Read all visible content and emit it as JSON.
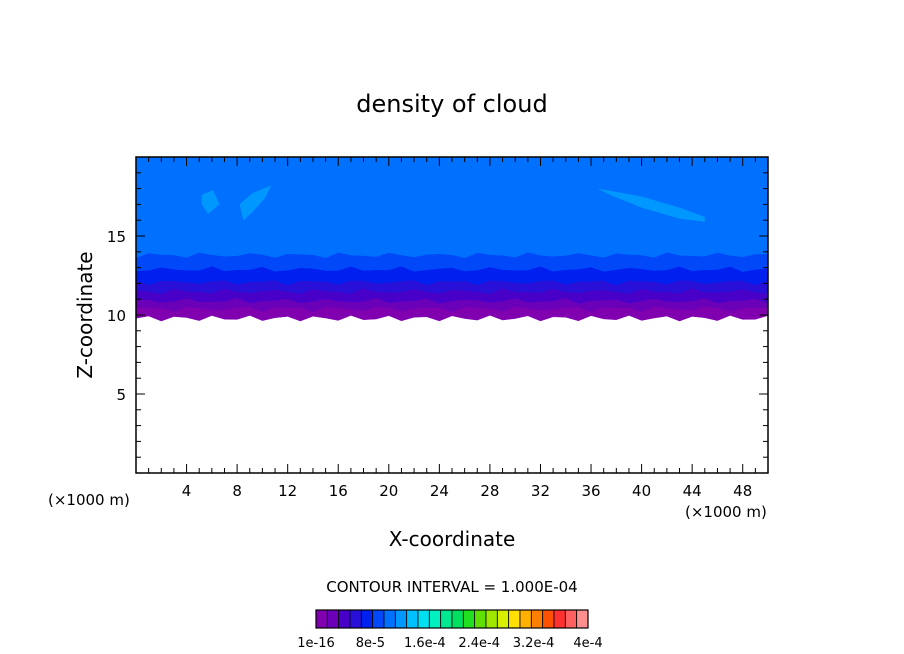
{
  "chart_data": {
    "type": "heatmap",
    "title": "density of cloud",
    "xlabel": "X-coordinate",
    "ylabel": "Z-coordinate",
    "x_unit": "(×1000 m)",
    "z_unit": "(×1000 m)",
    "xlim": [
      0,
      50
    ],
    "ylim": [
      0,
      20
    ],
    "x_ticks": [
      4,
      8,
      12,
      16,
      20,
      24,
      28,
      32,
      36,
      40,
      44,
      48
    ],
    "y_ticks": [
      5,
      10,
      15
    ],
    "contour_interval_text": "CONTOUR INTERVAL = 1.000E-04",
    "colorbar_labels": [
      "1e-16",
      "8e-5",
      "1.6e-4",
      "2.4e-4",
      "3.2e-4",
      "4e-4"
    ],
    "colorbar_colors": [
      "#8000b0",
      "#6a00b8",
      "#4800c8",
      "#2810d8",
      "#0020f0",
      "#0048f8",
      "#0070ff",
      "#0098ff",
      "#00c0ff",
      "#00e0f0",
      "#00f0c0",
      "#00e890",
      "#00e060",
      "#20e020",
      "#60e000",
      "#a0e800",
      "#d8f000",
      "#ffe000",
      "#ffb000",
      "#ff8000",
      "#ff5000",
      "#ff3030",
      "#ff6060",
      "#ff9090"
    ],
    "cloud_layers": [
      {
        "z_bottom": 9.8,
        "z_top": 10.4,
        "color": "#8000b0"
      },
      {
        "z_bottom": 10.4,
        "z_top": 10.9,
        "color": "#6a00b8"
      },
      {
        "z_bottom": 10.9,
        "z_top": 11.5,
        "color": "#4800c8"
      },
      {
        "z_bottom": 11.5,
        "z_top": 12.1,
        "color": "#2810d8"
      },
      {
        "z_bottom": 12.1,
        "z_top": 12.9,
        "color": "#0020f0"
      },
      {
        "z_bottom": 12.9,
        "z_top": 13.8,
        "color": "#0048f8"
      },
      {
        "z_bottom": 13.8,
        "z_top": 20.0,
        "color": "#0070ff"
      }
    ],
    "patches": [
      {
        "color": "#0098ff",
        "points": [
          [
            36.5,
            18.0
          ],
          [
            40,
            17.5
          ],
          [
            43,
            16.8
          ],
          [
            45,
            16.2
          ],
          [
            45,
            15.9
          ],
          [
            43,
            16.1
          ],
          [
            40,
            16.8
          ],
          [
            37.5,
            17.6
          ],
          [
            36.5,
            18.0
          ]
        ]
      },
      {
        "color": "#0098ff",
        "points": [
          [
            8.2,
            17.0
          ],
          [
            9.2,
            17.7
          ],
          [
            10.7,
            18.2
          ],
          [
            10.2,
            17.4
          ],
          [
            9.2,
            16.5
          ],
          [
            8.5,
            16.0
          ],
          [
            8.2,
            17.0
          ]
        ]
      },
      {
        "color": "#0098ff",
        "points": [
          [
            5.2,
            17.6
          ],
          [
            6.1,
            17.9
          ],
          [
            6.6,
            17.0
          ],
          [
            5.7,
            16.4
          ],
          [
            5.2,
            17.0
          ],
          [
            5.2,
            17.6
          ]
        ]
      }
    ]
  }
}
